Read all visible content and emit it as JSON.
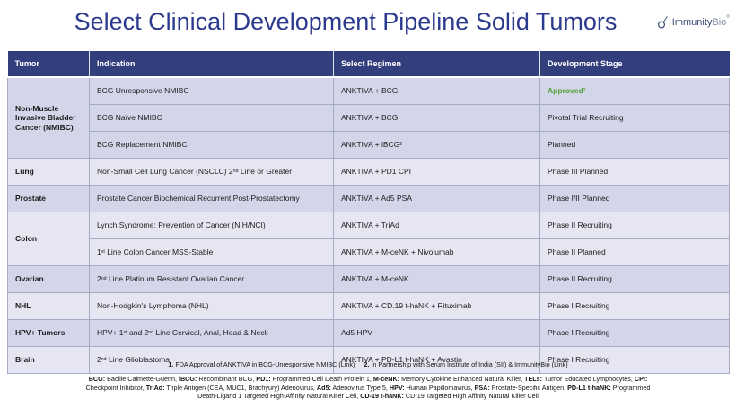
{
  "title": "Select Clinical Development Pipeline Solid Tumors",
  "logo": {
    "brand_main": "Immunity",
    "brand_suffix": "Bio",
    "trademark": "®"
  },
  "colors": {
    "title_navy": "#2c3a8e",
    "header_bg": "#333e7c",
    "row_dark": "#d3d6e9",
    "row_light": "#e5e6f2",
    "approved_green": "#53a138"
  },
  "table": {
    "columns": [
      "Tumor",
      "Indication",
      "Select Regimen",
      "Development Stage"
    ],
    "groups": [
      {
        "tumor": "Non-Muscle Invasive Bladder Cancer (NMIBC)",
        "rows": [
          {
            "indication": "BCG Unresponsive NMIBC",
            "regimen": "ANKTIVA + BCG",
            "stage": "Approved^{1}",
            "approved": true
          },
          {
            "indication": "BCG Naïve NMIBC",
            "regimen": "ANKTIVA + BCG",
            "stage": "Pivotal Trial Recruiting"
          },
          {
            "indication": "BCG Replacement NMIBC",
            "regimen": "ANKTIVA + iBCG^{2}",
            "stage": "Planned"
          }
        ]
      },
      {
        "tumor": "Lung",
        "rows": [
          {
            "indication": "Non-Small Cell Lung Cancer (NSCLC) 2^{nd} Line or Greater",
            "regimen": "ANKTIVA + PD1 CPI",
            "stage": "Phase III Planned"
          }
        ]
      },
      {
        "tumor": "Prostate",
        "rows": [
          {
            "indication": "Prostate Cancer Biochemical Recurrent Post-Prostatectomy",
            "regimen": "ANKTIVA + Ad5 PSA",
            "stage": "Phase I/II Planned"
          }
        ]
      },
      {
        "tumor": "Colon",
        "rows": [
          {
            "indication": "Lynch Syndrome: Prevention of Cancer (NIH/NCI)",
            "regimen": "ANKTIVA + TriAd",
            "stage": "Phase II Recruiting"
          },
          {
            "indication": "1^{st} Line Colon Cancer MSS-Stable",
            "regimen": "ANKTIVA + M-ceNK + Nivolumab",
            "stage": "Phase II Planned"
          }
        ]
      },
      {
        "tumor": "Ovarian",
        "rows": [
          {
            "indication": "2^{nd} Line Platinum Resistant Ovarian Cancer",
            "regimen": "ANKTIVA + M-ceNK",
            "stage": "Phase II Recruiting"
          }
        ]
      },
      {
        "tumor": "NHL",
        "rows": [
          {
            "indication": "Non-Hodgkin's Lymphoma (NHL)",
            "regimen": "ANKTIVA + CD.19 t-haNK + Rituximab",
            "stage": "Phase I Recruiting"
          }
        ]
      },
      {
        "tumor": "HPV+ Tumors",
        "rows": [
          {
            "indication": "HPV+ 1^{st} and 2^{nd} Line Cervical, Anal, Head & Neck",
            "regimen": "Ad5 HPV",
            "stage": "Phase I Recruiting"
          }
        ]
      },
      {
        "tumor": "Brain",
        "rows": [
          {
            "indication": "2^{nd} Line Glioblastoma",
            "regimen": "ANKTIVA + PD-L1 t-haNK + Avastin",
            "stage": "Phase I Recruiting"
          }
        ]
      }
    ]
  },
  "footnotes": {
    "notes": [
      {
        "num": "1.",
        "text": "FDA Approval of ANKTIVA in BCG-Unresponsive NMIBC",
        "link_label": "Link"
      },
      {
        "num": "2.",
        "text": "In Partnership with Serum Institute of India (SII) & ImmunityBio",
        "link_label": "Link"
      }
    ],
    "abbreviations": [
      {
        "term": "BCG",
        "def": "Bacille Calmette-Guerin"
      },
      {
        "term": "iBCG",
        "def": "Recombinant BCG"
      },
      {
        "term": "PD1",
        "def": "Programmed-Cell Death Protein 1"
      },
      {
        "term": "M-ceNK",
        "def": "Memory Cytokine Enhanced Natural Killer"
      },
      {
        "term": "TELs",
        "def": "Tumor Educated Lymphocytes"
      },
      {
        "term": "CPI",
        "def": "Checkpoint Inhibitor"
      },
      {
        "term": "TriAd",
        "def": "Triple Antigen (CEA, MUC1, Brachyury) Adenovirus"
      },
      {
        "term": "Ad5",
        "def": "Adenovirus Type 5"
      },
      {
        "term": "HPV",
        "def": "Human Papillomavirus"
      },
      {
        "term": "PSA",
        "def": "Prostate-Specific Antigen"
      },
      {
        "term": "PD-L1 t-haNK",
        "def": "Programmed Death-Ligand 1 Targeted High-Affinity Natural Killer Cell"
      },
      {
        "term": "CD-19 t-haNK",
        "def": "CD-19 Targeted High Affinity Natural Killer Cell"
      }
    ]
  }
}
